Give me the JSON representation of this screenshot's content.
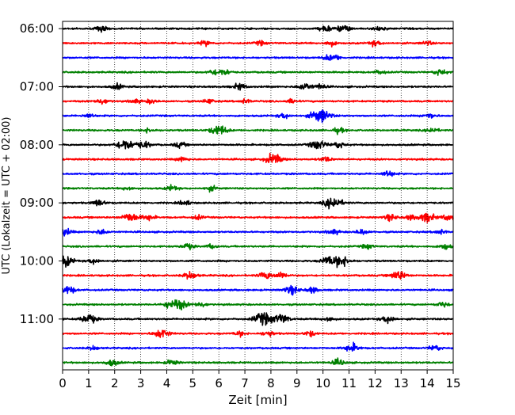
{
  "chart_data": {
    "type": "line",
    "subtype": "helicorder-seismogram",
    "title": "",
    "xlabel": "Zeit  [min]",
    "ylabel": "UTC (Lokalzeit = UTC + 02:00)",
    "xlim": [
      0,
      15
    ],
    "x_ticks": [
      0,
      1,
      2,
      3,
      4,
      5,
      6,
      7,
      8,
      9,
      10,
      11,
      12,
      13,
      14,
      15
    ],
    "x_tick_labels": [
      "0",
      "1",
      "2",
      "3",
      "4",
      "5",
      "6",
      "7",
      "8",
      "9",
      "10",
      "11",
      "12",
      "13",
      "14",
      "15"
    ],
    "y_tick_labels": [
      "06:00",
      "07:00",
      "08:00",
      "09:00",
      "10:00",
      "11:00"
    ],
    "rows_per_hour": 4,
    "minutes_per_row": 15,
    "vertical_grid": "dotted",
    "colors": {
      "cycle": [
        "#000000",
        "#ff0000",
        "#0000ff",
        "#008000"
      ],
      "axes": "#000000",
      "grid": "#000000",
      "background": "#ffffff"
    },
    "series": [
      {
        "start": "06:00",
        "events": [
          [
            1.5,
            0.55
          ],
          [
            10.1,
            0.6
          ],
          [
            10.8,
            0.7
          ],
          [
            12.2,
            0.5
          ]
        ]
      },
      {
        "start": "06:15",
        "events": [
          [
            5.5,
            0.45
          ],
          [
            7.6,
            0.4
          ],
          [
            10.3,
            0.5
          ],
          [
            12.0,
            0.5
          ],
          [
            14.0,
            0.4
          ]
        ]
      },
      {
        "start": "06:30",
        "events": [
          [
            10.2,
            0.45
          ],
          [
            10.5,
            0.45
          ]
        ]
      },
      {
        "start": "06:45",
        "events": [
          [
            5.8,
            0.5
          ],
          [
            6.2,
            0.6
          ],
          [
            12.2,
            0.4
          ],
          [
            14.5,
            0.6
          ]
        ]
      },
      {
        "start": "07:00",
        "events": [
          [
            2.1,
            0.5
          ],
          [
            6.8,
            0.6
          ],
          [
            9.3,
            0.7
          ],
          [
            9.9,
            0.5
          ]
        ]
      },
      {
        "start": "07:15",
        "events": [
          [
            1.5,
            0.55
          ],
          [
            2.8,
            0.4
          ],
          [
            3.4,
            0.4
          ],
          [
            5.6,
            0.45
          ],
          [
            7.0,
            0.4
          ],
          [
            8.8,
            0.4
          ]
        ]
      },
      {
        "start": "07:30",
        "events": [
          [
            1.0,
            0.45
          ],
          [
            8.5,
            0.5
          ],
          [
            9.9,
            1.3
          ],
          [
            14.1,
            0.55
          ]
        ]
      },
      {
        "start": "07:45",
        "events": [
          [
            3.3,
            0.4
          ],
          [
            6.0,
            1.0
          ],
          [
            10.6,
            0.5
          ],
          [
            14.2,
            0.5
          ]
        ]
      },
      {
        "start": "08:00",
        "events": [
          [
            2.4,
            1.1
          ],
          [
            3.1,
            0.7
          ],
          [
            4.5,
            0.5
          ],
          [
            9.8,
            0.9
          ],
          [
            10.6,
            0.6
          ]
        ]
      },
      {
        "start": "08:15",
        "events": [
          [
            4.6,
            0.45
          ],
          [
            8.1,
            1.0
          ],
          [
            10.1,
            0.5
          ]
        ]
      },
      {
        "start": "08:30",
        "events": [
          [
            12.5,
            0.6
          ]
        ]
      },
      {
        "start": "08:45",
        "events": [
          [
            2.5,
            0.4
          ],
          [
            4.2,
            0.5
          ],
          [
            5.7,
            0.45
          ]
        ]
      },
      {
        "start": "09:00",
        "events": [
          [
            1.4,
            0.6
          ],
          [
            4.7,
            0.5
          ],
          [
            10.4,
            1.1
          ]
        ]
      },
      {
        "start": "09:15",
        "events": [
          [
            2.6,
            0.9
          ],
          [
            3.3,
            0.6
          ],
          [
            5.2,
            0.4
          ],
          [
            12.6,
            0.6
          ],
          [
            13.4,
            0.5
          ],
          [
            14.0,
            0.9
          ],
          [
            14.8,
            0.6
          ]
        ]
      },
      {
        "start": "09:30",
        "events": [
          [
            0.0,
            0.9
          ],
          [
            1.5,
            0.5
          ],
          [
            10.4,
            0.5
          ],
          [
            11.5,
            0.5
          ],
          [
            14.5,
            0.45
          ]
        ]
      },
      {
        "start": "09:45",
        "events": [
          [
            4.8,
            0.55
          ],
          [
            5.7,
            0.4
          ],
          [
            11.7,
            0.45
          ],
          [
            14.7,
            0.5
          ]
        ]
      },
      {
        "start": "10:00",
        "events": [
          [
            0.05,
            1.1
          ],
          [
            1.2,
            0.5
          ],
          [
            10.2,
            0.8
          ],
          [
            10.7,
            1.0
          ]
        ]
      },
      {
        "start": "10:15",
        "events": [
          [
            4.9,
            0.7
          ],
          [
            7.8,
            0.7
          ],
          [
            8.4,
            0.6
          ],
          [
            12.9,
            0.9
          ]
        ]
      },
      {
        "start": "10:30",
        "events": [
          [
            0.2,
            0.8
          ],
          [
            8.8,
            0.8
          ],
          [
            9.6,
            0.55
          ]
        ]
      },
      {
        "start": "10:45",
        "events": [
          [
            4.1,
            0.6
          ],
          [
            4.5,
            0.9
          ],
          [
            5.3,
            0.5
          ],
          [
            14.6,
            0.5
          ]
        ]
      },
      {
        "start": "11:00",
        "events": [
          [
            1.0,
            0.9
          ],
          [
            7.7,
            1.2
          ],
          [
            8.4,
            0.9
          ],
          [
            10.2,
            0.5
          ],
          [
            12.5,
            0.7
          ]
        ]
      },
      {
        "start": "11:15",
        "events": [
          [
            3.8,
            0.9
          ],
          [
            6.8,
            0.45
          ],
          [
            7.9,
            0.55
          ],
          [
            9.5,
            0.5
          ]
        ]
      },
      {
        "start": "11:30",
        "events": [
          [
            1.2,
            0.4
          ],
          [
            11.1,
            0.8
          ],
          [
            14.3,
            0.55
          ]
        ]
      },
      {
        "start": "11:45",
        "events": [
          [
            1.9,
            0.6
          ],
          [
            4.2,
            0.5
          ],
          [
            10.6,
            0.6
          ]
        ]
      }
    ]
  }
}
